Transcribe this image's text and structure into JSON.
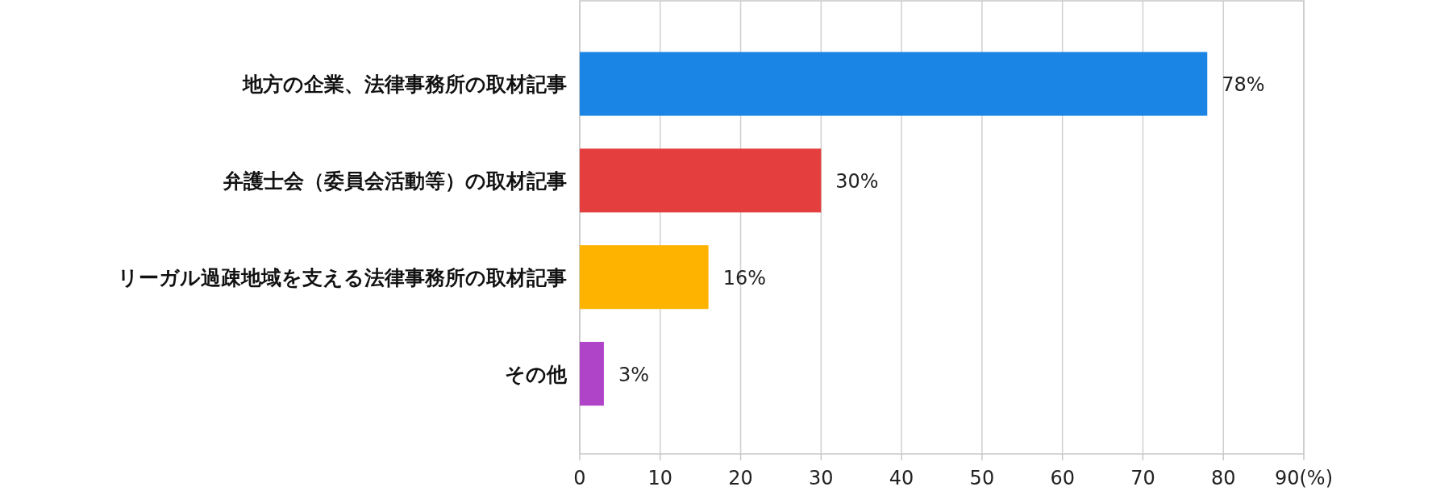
{
  "chart_data": {
    "type": "bar",
    "orientation": "horizontal",
    "categories": [
      "地方の企業、法律事務所の取材記事",
      "弁護士会（委員会活動等）の取材記事",
      "リーガル過疎地域を支える法律事務所の取材記事",
      "その他"
    ],
    "values": [
      78,
      30,
      16,
      3
    ],
    "colors": [
      "#1a85e4",
      "#e53e3e",
      "#fdb300",
      "#b044c8"
    ],
    "value_labels": [
      "78%",
      "30%",
      "16%",
      "3%"
    ],
    "xlim": [
      0,
      90
    ],
    "xticks": [
      0,
      10,
      20,
      30,
      40,
      50,
      60,
      70,
      80,
      {
        "value": 90,
        "label": "90(%)"
      }
    ],
    "grid": "x"
  }
}
